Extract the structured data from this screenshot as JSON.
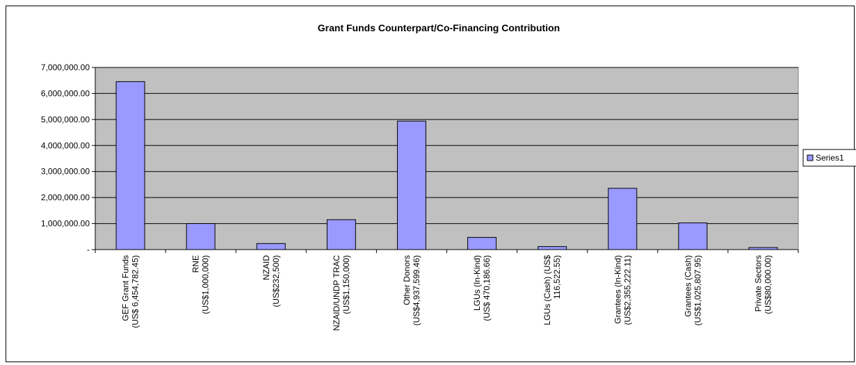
{
  "chart_data": {
    "type": "bar",
    "title": "Grant Funds Counterpart/Co-Financing Contribution",
    "xlabel": "",
    "ylabel": "",
    "ylim": [
      0,
      7000000
    ],
    "yticks": [
      {
        "value": 0,
        "label": "-"
      },
      {
        "value": 1000000,
        "label": "1,000,000.00"
      },
      {
        "value": 2000000,
        "label": "2,000,000.00"
      },
      {
        "value": 3000000,
        "label": "3,000,000.00"
      },
      {
        "value": 4000000,
        "label": "4,000,000.00"
      },
      {
        "value": 5000000,
        "label": "5,000,000.00"
      },
      {
        "value": 6000000,
        "label": "6,000,000.00"
      },
      {
        "value": 7000000,
        "label": "7,000,000.00"
      }
    ],
    "categories": [
      [
        "GEF Grant Funds",
        "(US$ 6,454,782.45)"
      ],
      [
        "RNE",
        "(US$1,000,000)"
      ],
      [
        "NZAID",
        "(US$232,500)"
      ],
      [
        "NZAID/UNDP TRAC",
        "(US$1,150,000)"
      ],
      [
        "Other Donors",
        "(US$4,937,599.46)"
      ],
      [
        "LGUs (In-Kind)",
        "(US$ 470,186.66)"
      ],
      [
        "LGUs (Cash) (US$",
        "116,522.55)"
      ],
      [
        "Grantees (In-Kind)",
        "(US$2,355,222.11)"
      ],
      [
        "Grantees (Cash)",
        "(US$1,025,807.95)"
      ],
      [
        "Private Sectors",
        "(US$80,000.00)"
      ]
    ],
    "series": [
      {
        "name": "Series1",
        "values": [
          6454782.45,
          1000000,
          232500,
          1150000,
          4937599.46,
          470186.66,
          116522.55,
          2355222.11,
          1025807.95,
          80000
        ],
        "color": "#9999ff"
      }
    ],
    "grid": true,
    "plot_background": "#c0c0c0",
    "legend": "right"
  }
}
